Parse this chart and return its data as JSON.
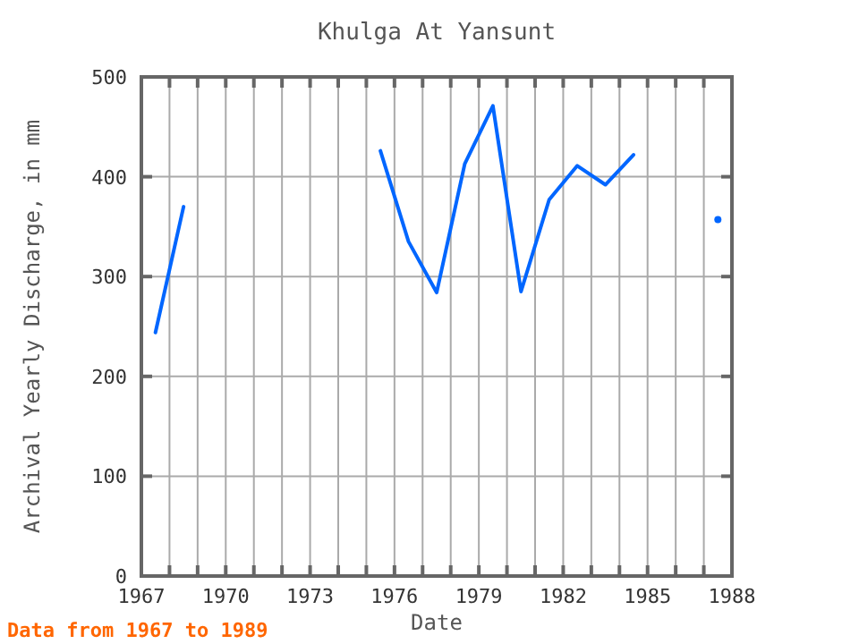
{
  "chart_data": {
    "type": "line",
    "title": "Khulga At Yansunt",
    "xlabel": "Date",
    "ylabel": "Archival Yearly Discharge, in mm",
    "x": [
      1967.5,
      1968.5,
      1969.5,
      1970.5,
      1971.5,
      1972.5,
      1973.5,
      1974.5,
      1975.5,
      1976.5,
      1977.5,
      1978.5,
      1979.5,
      1980.5,
      1981.5,
      1982.5,
      1983.5,
      1984.5,
      1985.5,
      1986.5,
      1987.5
    ],
    "series": [
      {
        "color": "#0066ff",
        "values": [
          244,
          370,
          null,
          null,
          null,
          null,
          null,
          null,
          426,
          335,
          284,
          413,
          471,
          285,
          377,
          411,
          392,
          422,
          null,
          null,
          357
        ]
      }
    ],
    "xlim": [
      1967,
      1988
    ],
    "xticks": [
      1967,
      {
        "value": 1968,
        "label": null
      },
      {
        "value": 1969,
        "label": null
      },
      1970,
      {
        "value": 1971,
        "label": null
      },
      {
        "value": 1972,
        "label": null
      },
      1973,
      {
        "value": 1974,
        "label": null
      },
      {
        "value": 1975,
        "label": null
      },
      1976,
      {
        "value": 1977,
        "label": null
      },
      {
        "value": 1978,
        "label": null
      },
      1979,
      {
        "value": 1980,
        "label": null
      },
      {
        "value": 1981,
        "label": null
      },
      1982,
      {
        "value": 1983,
        "label": null
      },
      {
        "value": 1984,
        "label": null
      },
      1985,
      {
        "value": 1986,
        "label": null
      },
      {
        "value": 1987,
        "label": null
      },
      1988
    ],
    "ylim": [
      0,
      500
    ],
    "yticks": [
      0,
      100,
      200,
      300,
      400,
      500
    ],
    "grid": true,
    "annotations": [
      "Data from 1967 to 1989"
    ]
  }
}
